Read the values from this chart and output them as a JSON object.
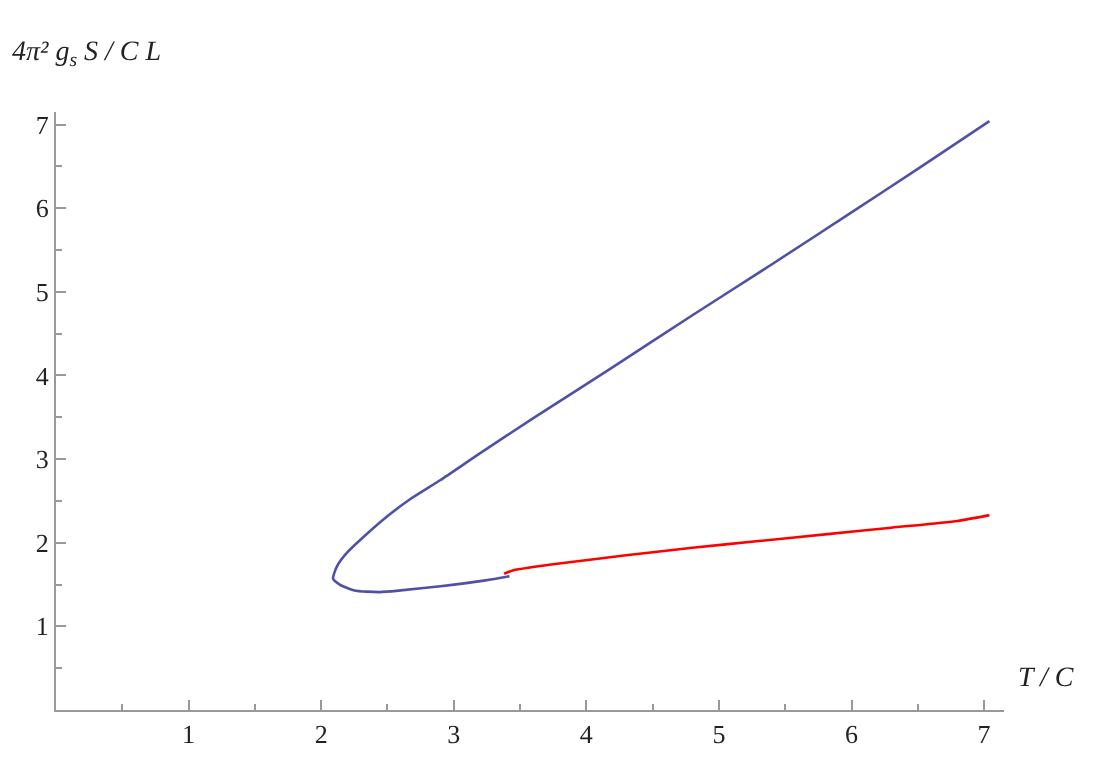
{
  "chart_data": {
    "type": "line",
    "xlabel": "T / C",
    "ylabel": "4π² g$_{s}$ S / C L",
    "series": [
      {
        "color": "#5050a8",
        "x": [
          3.42,
          3.24,
          2.9,
          2.6,
          2.44,
          2.25,
          2.14,
          2.09,
          2.12,
          2.2,
          2.44,
          2.67,
          2.9,
          3.18,
          3.6,
          4.2,
          4.8,
          5.4,
          6.0,
          6.5,
          7.04
        ],
        "values": [
          1.6,
          1.55,
          1.48,
          1.43,
          1.41,
          1.43,
          1.5,
          1.57,
          1.72,
          1.89,
          2.24,
          2.52,
          2.75,
          3.05,
          3.49,
          4.1,
          4.72,
          5.33,
          5.95,
          6.47,
          7.04
        ]
      },
      {
        "color": "#ff0000",
        "x": [
          3.38,
          3.45,
          3.84,
          4.3,
          4.8,
          5.3,
          5.8,
          6.3,
          6.8,
          7.04
        ],
        "values": [
          1.63,
          1.67,
          1.76,
          1.85,
          1.94,
          2.02,
          2.1,
          2.18,
          2.26,
          2.33
        ]
      }
    ],
    "xlim": [
      0,
      7.15
    ],
    "ylim": [
      0,
      7.15
    ],
    "xticks": [
      1,
      2,
      3,
      4,
      5,
      6,
      7
    ],
    "yticks": [
      1,
      2,
      3,
      4,
      5,
      6,
      7
    ],
    "marker": "none",
    "line_style": "solid"
  }
}
